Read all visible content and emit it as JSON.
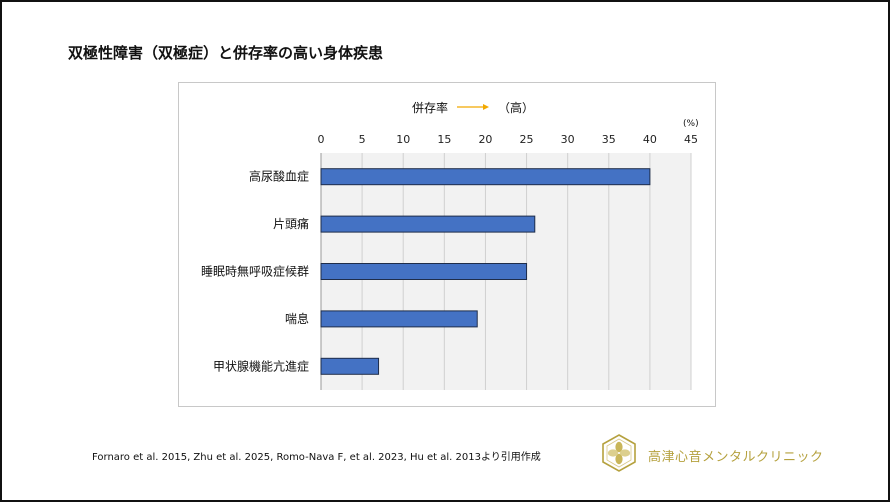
{
  "title": "双極性障害（双極症）と併存率の高い身体疾患",
  "legend_note": {
    "label": "併存率",
    "suffix": "（高）",
    "arrow_color": "#f2a900"
  },
  "chart_data": {
    "type": "bar",
    "orientation": "horizontal",
    "unit": "(%)",
    "categories": [
      "高尿酸血症",
      "片頭痛",
      "睡眠時無呼吸症候群",
      "喘息",
      "甲状腺機能亢進症"
    ],
    "values": [
      40,
      26,
      25,
      19,
      7
    ],
    "xlim": [
      0,
      45
    ],
    "xticks": [
      "0",
      "5",
      "10",
      "15",
      "20",
      "25",
      "30",
      "35",
      "40",
      "45"
    ],
    "tick_values": [
      0,
      5,
      10,
      15,
      20,
      25,
      30,
      35,
      40,
      45
    ],
    "grid": true,
    "axis_position": "top",
    "bar_color": "#4472c4",
    "bar_edge_color": "#1f2d4a",
    "plot_background": "#f2f2f2"
  },
  "footer": {
    "citation": "Fornaro et al. 2015, Zhu et al. 2025, Romo-Nava F, et al. 2023, Hu et al. 2013より引用作成",
    "clinic_name": "高津心音メンタルクリニック",
    "brand_color": "#b5a13e"
  }
}
